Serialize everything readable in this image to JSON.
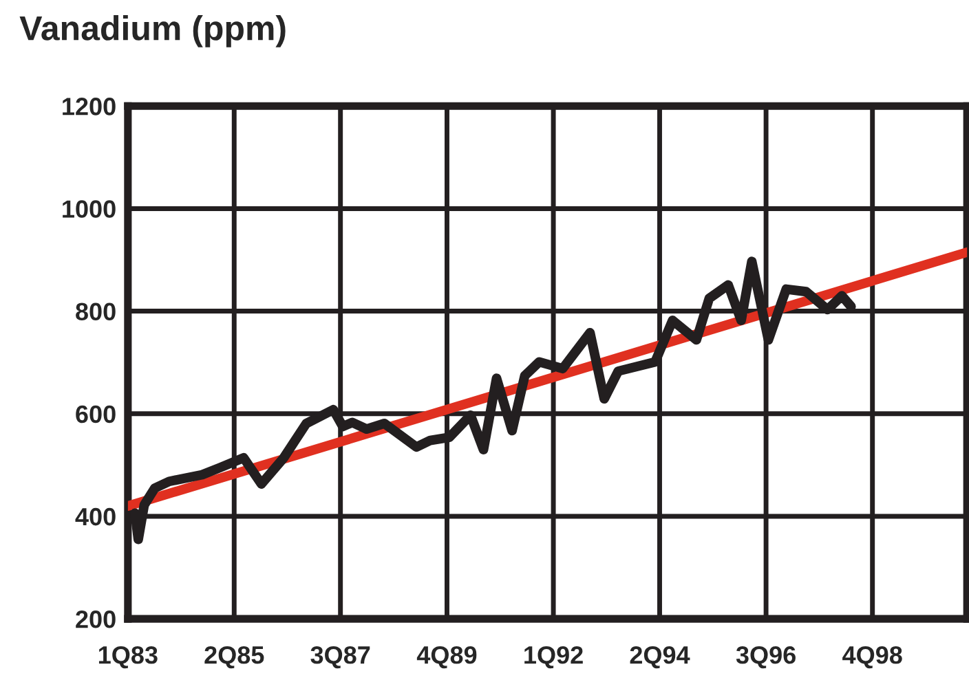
{
  "chart_data": {
    "type": "line",
    "title": "Vanadium (ppm)",
    "xlim": [
      "1983-01-01",
      "2000-10-01"
    ],
    "ylim": [
      200,
      1200
    ],
    "xticks": [
      {
        "value": "1983-01-01",
        "label": "1Q83"
      },
      {
        "value": "1985-04-01",
        "label": "2Q85"
      },
      {
        "value": "1987-07-01",
        "label": "3Q87"
      },
      {
        "value": "1989-10-01",
        "label": "4Q89"
      },
      {
        "value": "1992-01-01",
        "label": "1Q92"
      },
      {
        "value": "1994-04-01",
        "label": "2Q94"
      },
      {
        "value": "1996-07-01",
        "label": "3Q96"
      },
      {
        "value": "1998-10-01",
        "label": "4Q98"
      }
    ],
    "yticks": [
      200,
      400,
      600,
      800,
      1000,
      1200
    ],
    "grid": true,
    "line_style": "solid",
    "marker": "none",
    "series": [
      {
        "color": "#e03020",
        "x": [
          "1983-01-01",
          "2000-10-01"
        ],
        "values": [
          420,
          915
        ]
      },
      {
        "color": "#231f20",
        "x": [
          "1983-02-25",
          "1983-03-22",
          "1983-05-07",
          "1983-07-28",
          "1983-11-16",
          "1984-07-28",
          "1984-12-13",
          "1985-06-13",
          "1985-10-28",
          "1986-04-19",
          "1986-10-10",
          "1987-05-07",
          "1987-07-19",
          "1987-10-01",
          "1988-01-19",
          "1988-06-04",
          "1989-02-07",
          "1989-05-25",
          "1989-10-19",
          "1990-04-01",
          "1990-07-10",
          "1990-10-19",
          "1991-02-16",
          "1991-05-25",
          "1991-09-13",
          "1992-03-13",
          "1992-10-10",
          "1993-01-28",
          "1993-05-16",
          "1994-02-25",
          "1994-07-10",
          "1995-01-10",
          "1995-04-19",
          "1995-09-13",
          "1995-12-22",
          "1996-03-13",
          "1996-07-19",
          "1996-12-04",
          "1997-05-07",
          "1997-10-19",
          "1998-02-07",
          "1998-04-19"
        ],
        "values": [
          406,
          355,
          422,
          455,
          468,
          481,
          495,
          514,
          463,
          514,
          581,
          608,
          575,
          583,
          570,
          581,
          535,
          548,
          554,
          597,
          530,
          669,
          567,
          674,
          701,
          688,
          758,
          629,
          683,
          701,
          782,
          744,
          825,
          851,
          782,
          897,
          744,
          843,
          838,
          803,
          830,
          809
        ]
      }
    ]
  }
}
